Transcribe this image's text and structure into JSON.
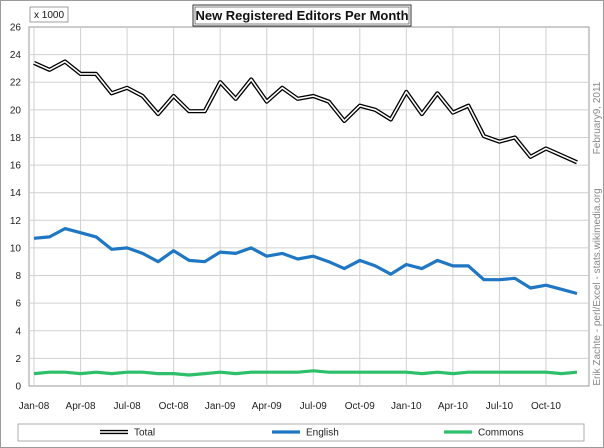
{
  "chart_data": {
    "type": "line",
    "title": "New Registered Editors Per Month",
    "unit_label": "x 1000",
    "credits": {
      "date": "February9, 2011",
      "author": "Erik Zachte  -  perl/Excel  -  stats.wikimedia.org"
    },
    "ylim": [
      0,
      26
    ],
    "y_ticks": [
      "0",
      "2",
      "4",
      "6",
      "8",
      "10",
      "12",
      "14",
      "16",
      "18",
      "20",
      "22",
      "24",
      "26"
    ],
    "x_ticks": [
      {
        "index": 0,
        "label": "Jan-08"
      },
      {
        "index": 3,
        "label": "Apr-08"
      },
      {
        "index": 6,
        "label": "Jul-08"
      },
      {
        "index": 9,
        "label": "Oct-08"
      },
      {
        "index": 12,
        "label": "Jan-09"
      },
      {
        "index": 15,
        "label": "Apr-09"
      },
      {
        "index": 18,
        "label": "Jul-09"
      },
      {
        "index": 21,
        "label": "Oct-09"
      },
      {
        "index": 24,
        "label": "Jan-10"
      },
      {
        "index": 27,
        "label": "Apr-10"
      },
      {
        "index": 30,
        "label": "Jul-10"
      },
      {
        "index": 33,
        "label": "Oct-10"
      }
    ],
    "x_count": 36,
    "grid": true,
    "legend_position": "bottom",
    "series": [
      {
        "name": "Total",
        "color": "#000000",
        "style": "double",
        "values": [
          23.4,
          22.9,
          23.5,
          22.6,
          22.6,
          21.2,
          21.6,
          21.0,
          19.7,
          21.0,
          19.9,
          19.9,
          22.0,
          20.8,
          22.2,
          20.6,
          21.6,
          20.8,
          21.0,
          20.6,
          19.2,
          20.3,
          20.0,
          19.3,
          21.3,
          19.7,
          21.2,
          19.8,
          20.3,
          18.1,
          17.7,
          18.0,
          16.6,
          17.2,
          16.7,
          16.2
        ]
      },
      {
        "name": "English",
        "color": "#1f77c4",
        "style": "solid",
        "values": [
          10.7,
          10.8,
          11.4,
          11.1,
          10.8,
          9.9,
          10.0,
          9.6,
          9.0,
          9.8,
          9.1,
          9.0,
          9.7,
          9.6,
          10.0,
          9.4,
          9.6,
          9.2,
          9.4,
          9.0,
          8.5,
          9.1,
          8.7,
          8.1,
          8.8,
          8.5,
          9.1,
          8.7,
          8.7,
          7.7,
          7.7,
          7.8,
          7.1,
          7.3,
          7.0,
          6.7
        ]
      },
      {
        "name": "Commons",
        "color": "#2ebf6a",
        "style": "solid",
        "values": [
          0.9,
          1.0,
          1.0,
          0.9,
          1.0,
          0.9,
          1.0,
          1.0,
          0.9,
          0.9,
          0.8,
          0.9,
          1.0,
          0.9,
          1.0,
          1.0,
          1.0,
          1.0,
          1.1,
          1.0,
          1.0,
          1.0,
          1.0,
          1.0,
          1.0,
          0.9,
          1.0,
          0.9,
          1.0,
          1.0,
          1.0,
          1.0,
          1.0,
          1.0,
          0.9,
          1.0
        ]
      }
    ]
  }
}
